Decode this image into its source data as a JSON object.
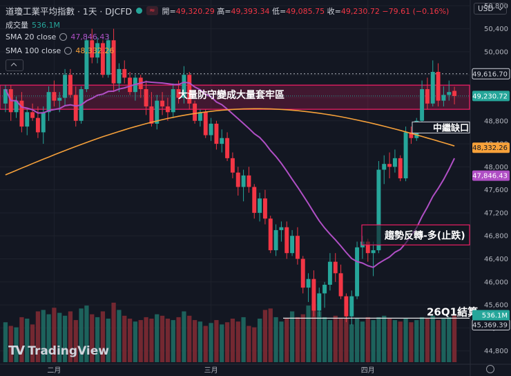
{
  "header": {
    "symbol": "道瓊工業平均指數 · 1天 · DJCFD",
    "open_label": "開=",
    "open": "49,320.29",
    "high_label": "高=",
    "high": "49,393.34",
    "low_label": "低=",
    "low": "49,085.75",
    "close_label": "收=",
    "close": "49,230.72",
    "change": "−79.61 (−0.16%)",
    "chip": "≈"
  },
  "legend": {
    "volume_label": "成交量",
    "volume_value": "536.1M",
    "sma20_label": "SMA 20 close",
    "sma20_value": "47,846.43",
    "sma100_label": "SMA 100 close",
    "sma100_value": "48,332.26"
  },
  "currency": "USD",
  "brand": "TradingView",
  "colors": {
    "up": "#26a69a",
    "down": "#f23645",
    "sma20": "#b04fc5",
    "sma100": "#f7a13a",
    "zone": "#e91e63"
  },
  "annotations": {
    "zone_label": "大量防守變成大量套牢區",
    "gap_label": "中繼缺口",
    "trend_label": "趨勢反轉-多(止跌)",
    "q1_label": "26Q1結算"
  },
  "chart_data": {
    "type": "candlestick",
    "x_labels": [
      "二月",
      "三月",
      "四月"
    ],
    "y_ticks": [
      44800,
      45200,
      45600,
      46000,
      46400,
      46800,
      47200,
      47600,
      48000,
      48400,
      48800,
      49200,
      49600,
      50000,
      50400,
      50800
    ],
    "ylim": [
      44580,
      50900
    ],
    "price_tags": [
      {
        "value": 49616.7,
        "label": "49,616.70",
        "style": "dotted"
      },
      {
        "value": 49230.72,
        "label": "49,230.72",
        "style": "last"
      },
      {
        "value": 48332.26,
        "label": "48,332.26",
        "style": "sma100"
      },
      {
        "value": 47846.43,
        "label": "47,846.43",
        "style": "sma20"
      },
      {
        "value": 45369.39,
        "label": "45,369.39",
        "style": "line"
      },
      {
        "value": 45320,
        "label": "536.1M",
        "style": "volume"
      }
    ],
    "zone": [
      49000,
      49420
    ],
    "q1_line": 45369.39,
    "candles": [
      [
        49100,
        49420,
        48950,
        49350
      ],
      [
        49350,
        49420,
        48800,
        48950
      ],
      [
        48950,
        49220,
        48850,
        49150
      ],
      [
        49150,
        49300,
        48600,
        48700
      ],
      [
        48700,
        49000,
        48550,
        48950
      ],
      [
        48950,
        49100,
        48800,
        48850
      ],
      [
        48850,
        49050,
        48500,
        48600
      ],
      [
        48600,
        49050,
        48400,
        48950
      ],
      [
        48950,
        49400,
        48800,
        49300
      ],
      [
        49300,
        49500,
        49050,
        49150
      ],
      [
        49150,
        49300,
        48950,
        49200
      ],
      [
        49200,
        49700,
        49050,
        49600
      ],
      [
        49600,
        49700,
        49200,
        49250
      ],
      [
        49250,
        49400,
        48700,
        48800
      ],
      [
        48800,
        49400,
        48750,
        49350
      ],
      [
        49350,
        50300,
        49300,
        50200
      ],
      [
        50200,
        50400,
        49800,
        49900
      ],
      [
        49900,
        50250,
        49800,
        50150
      ],
      [
        50150,
        50200,
        49550,
        49600
      ],
      [
        49600,
        50300,
        49550,
        50200
      ],
      [
        50200,
        50400,
        49300,
        49450
      ],
      [
        49450,
        49800,
        49300,
        49700
      ],
      [
        49700,
        49850,
        49450,
        49550
      ],
      [
        49550,
        49650,
        49250,
        49300
      ],
      [
        49300,
        49600,
        49150,
        49550
      ],
      [
        49550,
        49600,
        49200,
        49350
      ],
      [
        49350,
        49500,
        48900,
        49050
      ],
      [
        49050,
        49300,
        48700,
        48750
      ],
      [
        48750,
        49250,
        48650,
        49150
      ],
      [
        49150,
        49300,
        48900,
        49050
      ],
      [
        49050,
        49200,
        48800,
        48950
      ],
      [
        48950,
        49450,
        48850,
        49350
      ],
      [
        49350,
        49500,
        49100,
        49200
      ],
      [
        49200,
        49750,
        49100,
        49600
      ],
      [
        49600,
        49650,
        49000,
        49100
      ],
      [
        49100,
        49150,
        48750,
        48800
      ],
      [
        48800,
        49000,
        48700,
        48950
      ],
      [
        48950,
        49000,
        48500,
        48550
      ],
      [
        48550,
        48850,
        48450,
        48750
      ],
      [
        48750,
        48800,
        48300,
        48400
      ],
      [
        48400,
        48650,
        48250,
        48500
      ],
      [
        48500,
        48600,
        48100,
        48150
      ],
      [
        48150,
        48250,
        47800,
        47900
      ],
      [
        47900,
        48000,
        47500,
        47650
      ],
      [
        47650,
        47950,
        47400,
        47850
      ],
      [
        47850,
        48000,
        47550,
        47650
      ],
      [
        47650,
        47700,
        47100,
        47200
      ],
      [
        47200,
        47550,
        47050,
        47450
      ],
      [
        47450,
        47600,
        47000,
        47100
      ],
      [
        47100,
        47150,
        46500,
        46550
      ],
      [
        46550,
        47000,
        46450,
        46900
      ],
      [
        46900,
        47050,
        46700,
        46950
      ],
      [
        46950,
        47050,
        46400,
        46500
      ],
      [
        46500,
        46900,
        46450,
        46800
      ],
      [
        46800,
        46950,
        46300,
        46400
      ],
      [
        46400,
        46450,
        45800,
        45900
      ],
      [
        45900,
        46150,
        45650,
        46050
      ],
      [
        46050,
        46200,
        45400,
        45500
      ],
      [
        45500,
        45900,
        45400,
        45800
      ],
      [
        45800,
        46000,
        45550,
        45950
      ],
      [
        45950,
        46500,
        45850,
        46350
      ],
      [
        46350,
        46500,
        46000,
        46150
      ],
      [
        46150,
        46300,
        45700,
        45750
      ],
      [
        45750,
        45800,
        45300,
        45400
      ],
      [
        45400,
        45850,
        45250,
        45750
      ],
      [
        45750,
        46700,
        45700,
        46600
      ],
      [
        46600,
        46800,
        46400,
        46700
      ],
      [
        46700,
        46750,
        46350,
        46500
      ],
      [
        46500,
        46700,
        46100,
        46550
      ],
      [
        46550,
        48100,
        46500,
        47950
      ],
      [
        47950,
        48200,
        47700,
        48050
      ],
      [
        48050,
        48250,
        47800,
        48000
      ],
      [
        48000,
        48300,
        47900,
        48150
      ],
      [
        48150,
        48200,
        47750,
        47800
      ],
      [
        47800,
        48700,
        47750,
        48600
      ],
      [
        48600,
        48700,
        48400,
        48500
      ],
      [
        48500,
        48850,
        48450,
        48800
      ],
      [
        48800,
        49500,
        48600,
        49350
      ],
      [
        49350,
        49550,
        49000,
        49100
      ],
      [
        49100,
        49850,
        49050,
        49650
      ],
      [
        49650,
        49800,
        49050,
        49150
      ],
      [
        49150,
        49400,
        49050,
        49250
      ],
      [
        49250,
        49500,
        49150,
        49300
      ],
      [
        49320.29,
        49393.34,
        49085.75,
        49230.72
      ]
    ],
    "volumes": [
      0.55,
      0.5,
      0.48,
      0.62,
      0.6,
      0.52,
      0.7,
      0.72,
      0.66,
      0.75,
      0.68,
      0.64,
      0.7,
      0.58,
      0.74,
      0.78,
      0.66,
      0.62,
      0.7,
      0.6,
      0.82,
      0.72,
      0.64,
      0.6,
      0.56,
      0.58,
      0.62,
      0.6,
      0.66,
      0.64,
      0.6,
      0.58,
      0.62,
      0.7,
      0.64,
      0.58,
      0.56,
      0.5,
      0.54,
      0.58,
      0.52,
      0.55,
      0.6,
      0.56,
      0.62,
      0.5,
      0.48,
      0.6,
      0.72,
      0.74,
      0.62,
      0.56,
      0.6,
      0.7,
      0.62,
      0.66,
      0.78,
      0.8,
      0.7,
      0.62,
      0.58,
      0.64,
      0.6,
      0.6,
      0.52,
      0.6,
      0.56,
      0.62,
      0.58,
      0.62,
      0.64,
      0.6,
      0.58,
      0.56,
      0.6,
      0.55,
      0.58,
      0.62,
      0.6,
      0.64,
      0.58,
      0.6,
      0.62,
      0.64
    ],
    "vol_max_label": "536.1M",
    "sma20_label": "SMA 20 close",
    "sma100_label": "SMA 100 close"
  }
}
